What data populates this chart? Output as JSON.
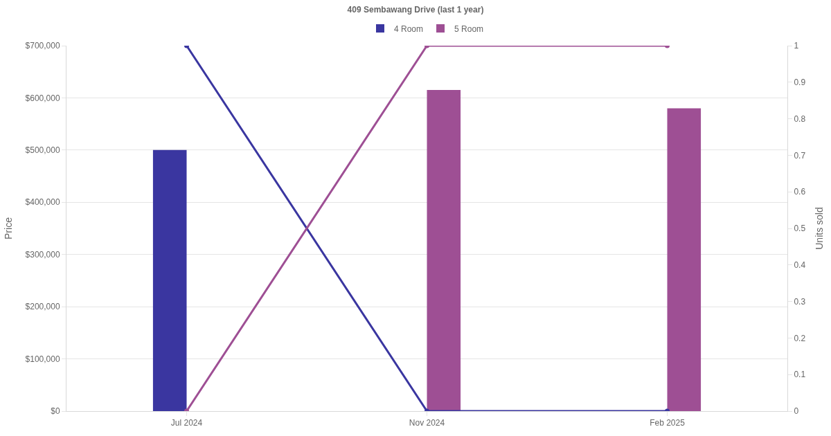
{
  "chart_data": {
    "type": "bar",
    "title": "409 Sembawang Drive (last 1 year)",
    "ylabel": "Price",
    "y2label": "Units sold",
    "categories": [
      "Jul 2024",
      "Nov 2024",
      "Feb 2025"
    ],
    "series": [
      {
        "name": "4 Room",
        "color": "#3a36a0",
        "values": [
          500000,
          null,
          null
        ]
      },
      {
        "name": "5 Room",
        "color": "#9e4f94",
        "values": [
          null,
          615000,
          580000
        ]
      },
      {
        "type": "line",
        "axis": "y2",
        "color": "#3a36a0",
        "values": [
          1,
          0,
          0
        ]
      },
      {
        "type": "line",
        "axis": "y2",
        "color": "#9e4f94",
        "values": [
          0,
          1,
          1
        ]
      }
    ],
    "ylim": [
      0,
      700000
    ],
    "yticks": [
      {
        "value": 0,
        "label": "$0"
      },
      {
        "value": 100000,
        "label": "$100,000"
      },
      {
        "value": 200000,
        "label": "$200,000"
      },
      {
        "value": 300000,
        "label": "$300,000"
      },
      {
        "value": 400000,
        "label": "$400,000"
      },
      {
        "value": 500000,
        "label": "$500,000"
      },
      {
        "value": 600000,
        "label": "$600,000"
      },
      {
        "value": 700000,
        "label": "$700,000"
      }
    ],
    "y2lim": [
      0,
      1
    ],
    "y2ticks": [
      0,
      0.1,
      0.2,
      0.3,
      0.4,
      0.5,
      0.6,
      0.7,
      0.8,
      0.9,
      1
    ],
    "grid": "y",
    "legend": "top",
    "marker": "circle",
    "line_style": "solid"
  }
}
